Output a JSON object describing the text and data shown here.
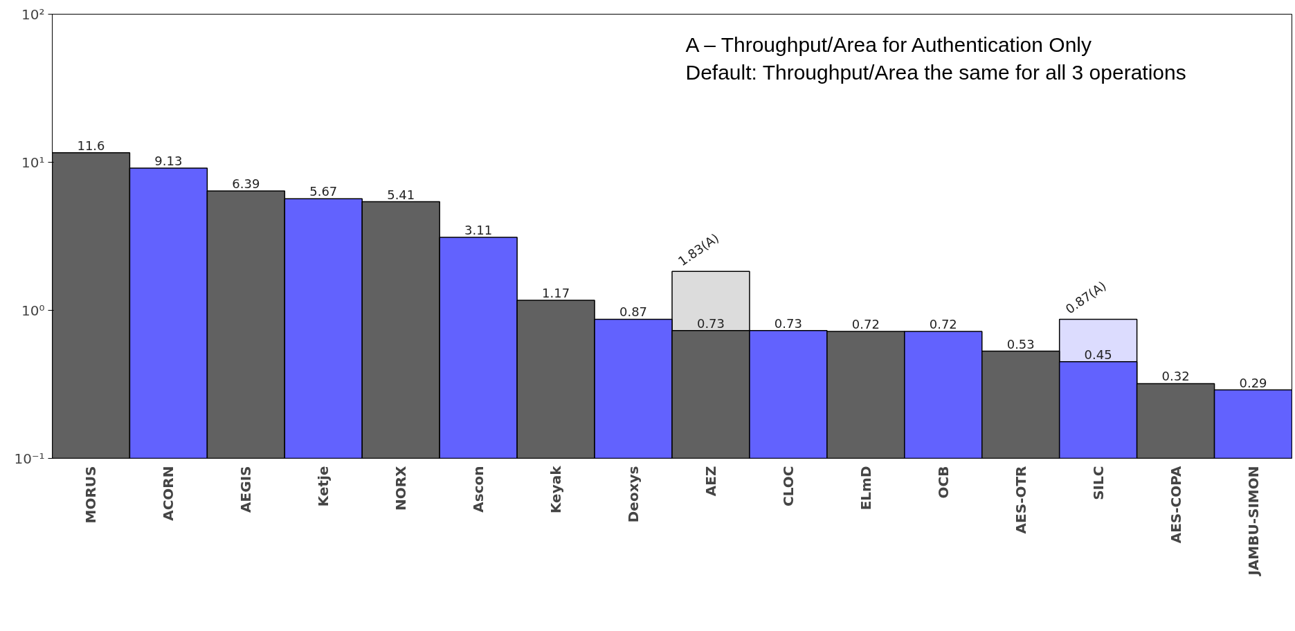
{
  "chart_data": {
    "type": "bar",
    "log": true,
    "grid": false,
    "categories": [
      "MORUS",
      "ACORN",
      "AEGIS",
      "Ketje",
      "NORX",
      "Ascon",
      "Keyak",
      "Deoxys",
      "AEZ",
      "CLOC",
      "ELmD",
      "OCB",
      "AES-OTR",
      "SILC",
      "AES-COPA",
      "JAMBU-SIMON"
    ],
    "ylim": [
      0.1,
      100
    ],
    "yticks": [
      {
        "value": 0.1,
        "label": "10⁻¹"
      },
      {
        "value": 1,
        "label": "10⁰"
      },
      {
        "value": 10,
        "label": "10¹"
      },
      {
        "value": 100,
        "label": "10²"
      }
    ],
    "series": [
      {
        "values": [
          null,
          null,
          null,
          null,
          null,
          null,
          null,
          null,
          1.83,
          null,
          null,
          null,
          null,
          0.87,
          null,
          null
        ],
        "colors": [
          null,
          null,
          null,
          null,
          null,
          null,
          null,
          null,
          "#dcdcdc",
          null,
          null,
          null,
          null,
          "#dcdcfe",
          null,
          null
        ],
        "value_labels": [
          null,
          null,
          null,
          null,
          null,
          null,
          null,
          null,
          "1.83(A)",
          null,
          null,
          null,
          null,
          "0.87(A)",
          null,
          null
        ]
      },
      {
        "values": [
          11.6,
          9.13,
          6.39,
          5.67,
          5.41,
          3.11,
          1.17,
          0.87,
          0.73,
          0.73,
          0.72,
          0.72,
          0.53,
          0.45,
          0.32,
          0.29
        ],
        "colors": [
          "#616161",
          "#6262fe",
          "#616161",
          "#6262fe",
          "#616161",
          "#6262fe",
          "#616161",
          "#6262fe",
          "#616161",
          "#6262fe",
          "#616161",
          "#6262fe",
          "#616161",
          "#6262fe",
          "#616161",
          "#6262fe"
        ],
        "value_labels": [
          "11.6",
          "9.13",
          "6.39",
          "5.67",
          "5.41",
          "3.11",
          "1.17",
          "0.87",
          "0.73",
          "0.73",
          "0.72",
          "0.72",
          "0.53",
          "0.45",
          "0.32",
          "0.29"
        ]
      }
    ],
    "annotations": [
      "A – Throughput/Area for Authentication Only",
      "Default: Throughput/Area the same for all 3 operations"
    ]
  }
}
